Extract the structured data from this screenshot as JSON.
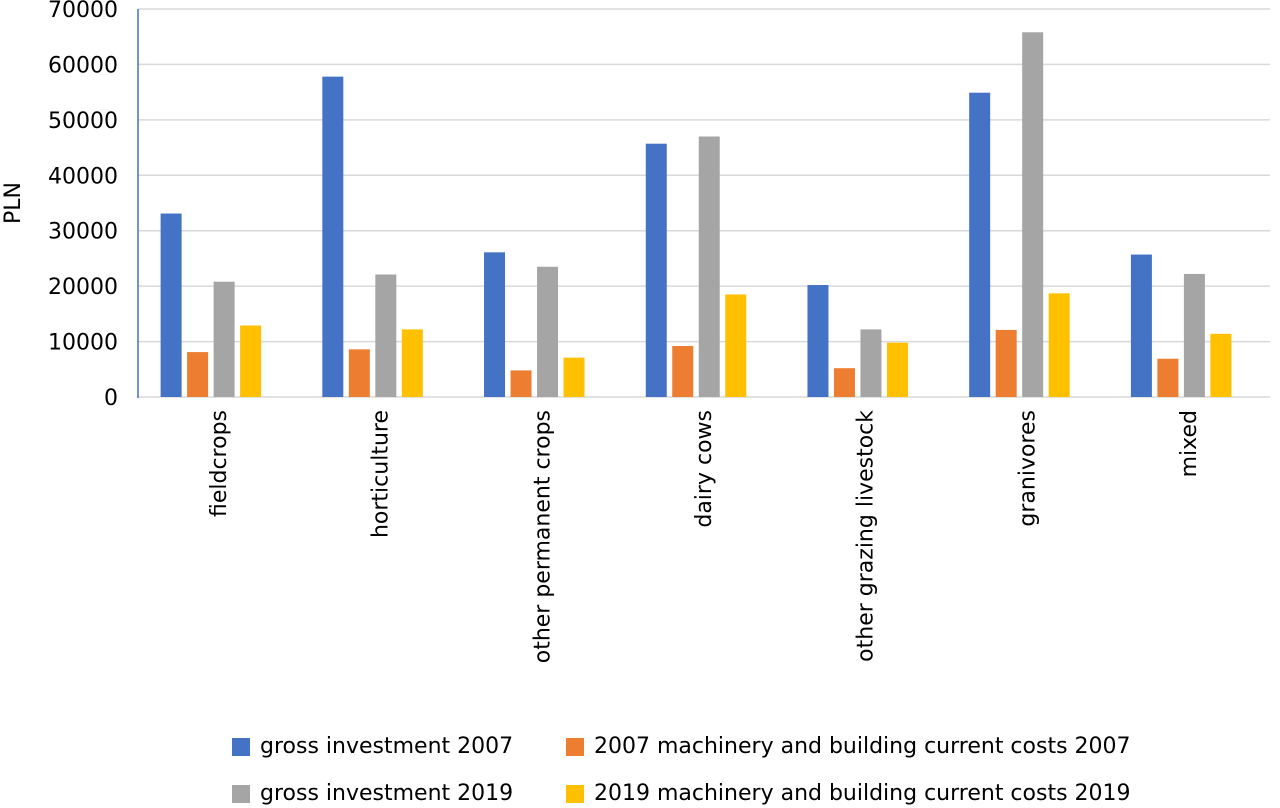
{
  "chart_data": {
    "type": "bar",
    "title": "",
    "xlabel": "",
    "ylabel": "PLN",
    "ylim": [
      0,
      70000
    ],
    "yticks": [
      0,
      10000,
      20000,
      30000,
      40000,
      50000,
      60000,
      70000
    ],
    "grid": true,
    "legend_position": "bottom",
    "categories": [
      "fieldcrops",
      "horticulture",
      "other permanent crops",
      "dairy cows",
      "other grazing livestock",
      "granivores",
      "mixed"
    ],
    "series": [
      {
        "name": "gross investment 2007",
        "color": "#4472C4",
        "values": [
          33100,
          57800,
          26100,
          45700,
          20200,
          54900,
          25700
        ]
      },
      {
        "name": "2007 machinery and building current costs 2007",
        "color": "#ED7D31",
        "values": [
          8100,
          8600,
          4800,
          9200,
          5200,
          12100,
          6900
        ]
      },
      {
        "name": "gross investment 2019",
        "color": "#A5A5A5",
        "values": [
          20800,
          22100,
          23500,
          47000,
          12200,
          65800,
          22200
        ]
      },
      {
        "name": "2019 machinery and building current costs 2019",
        "color": "#FFC000",
        "values": [
          12900,
          12200,
          7100,
          18500,
          9800,
          18700,
          11400
        ]
      }
    ]
  }
}
